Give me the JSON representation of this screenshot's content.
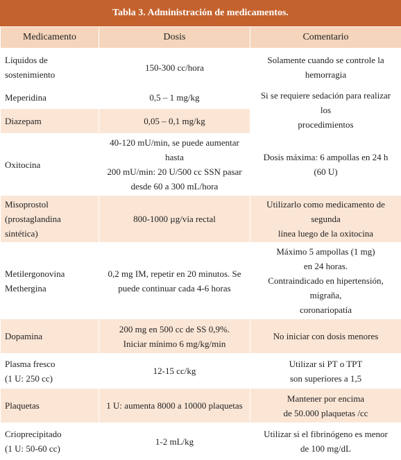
{
  "table": {
    "title": "Tabla 3. Administración de medicamentos.",
    "header": [
      "Medicamento",
      "Dosis",
      "Comentario"
    ],
    "rows": [
      [
        "Líquidos de sostenimiento",
        "150-300 cc/hora",
        "Solamente cuando se controle la\nhemorragia"
      ],
      [
        "Meperidina",
        "0,5 – 1 mg/kg",
        "Si se requiere sedación para realizar los\nprocedimientos"
      ],
      [
        "Diazepam",
        "0,05 – 0,1 mg/kg"
      ],
      [
        "Oxitocina",
        "40-120 mU/min, se puede aumentar hasta\n200 mU/min: 20 U/500 cc SSN pasar\ndesde 60 a 300 mL/hora",
        "Dosis máxima: 6 ampollas en 24 h\n(60 U)"
      ],
      [
        "Misoprostol\n(prostaglandina sintética)",
        "800-1000 µg/vía rectal",
        "Utilizarlo como medicamento de segunda\nlínea luego de la oxitocina"
      ],
      [
        "Metilergonovina\nMethergina",
        "0,2 mg IM, repetir en 20 minutos. Se\npuede continuar cada 4-6 horas",
        "Máximo 5 ampollas (1 mg)\nen 24 horas.\nContraindicado en hipertensión, migraña,\ncoronariopatía"
      ],
      [
        "Dopamina",
        "200 mg en 500 cc de SS 0,9%.\nIniciar mínimo 6 mg/kg/min",
        "No iniciar con dosis menores"
      ],
      [
        "Plasma fresco\n(1 U: 250 cc)",
        "12-15 cc/kg",
        "Utilizar si PT o TPT\nson superiores a 1,5"
      ],
      [
        "Plaquetas",
        "1 U: aumenta 8000 a 10000 plaquetas",
        "Mantener por encima\nde 50.000 plaquetas /cc"
      ],
      [
        "Crioprecipitado\n(1 U: 50-60 cc)",
        "1-2 mL/kg",
        "Utilizar si el fibrinógeno es menor\nde 100 mg/dL"
      ]
    ]
  }
}
